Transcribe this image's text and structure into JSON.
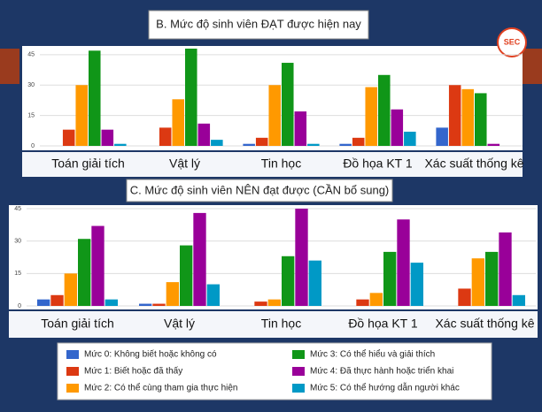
{
  "logo_text": "SEC",
  "chart_data": [
    {
      "type": "bar",
      "title": "B. Mức độ sinh viên ĐẠT được hiện nay",
      "categories": [
        "Toán giải tích",
        "Vật lý",
        "Tin học",
        "Đồ họa KT 1",
        "Xác suất thống kê"
      ],
      "ylim": [
        0,
        48
      ],
      "yticks": [
        0,
        15,
        30,
        45
      ],
      "grid": true,
      "legend": "bottom",
      "series": [
        {
          "name": "Mức 0: Không biết hoặc không có",
          "color": "#3366cc",
          "values": [
            0,
            0,
            1,
            1,
            9
          ]
        },
        {
          "name": "Mức 1: Biết hoặc đã thấy",
          "color": "#dc3912",
          "values": [
            8,
            9,
            4,
            4,
            30
          ]
        },
        {
          "name": "Mức 2: Có thể cùng tham gia thực hiện",
          "color": "#ff9900",
          "values": [
            30,
            23,
            30,
            29,
            28
          ]
        },
        {
          "name": "Mức 3: Có thể hiểu và giải thích",
          "color": "#109618",
          "values": [
            47,
            48,
            41,
            35,
            26
          ]
        },
        {
          "name": "Mức 4: Đã thực hành hoặc triển khai",
          "color": "#990099",
          "values": [
            8,
            11,
            17,
            18,
            1
          ]
        },
        {
          "name": "Mức 5: Có thể hướng dẫn người khác",
          "color": "#0099c6",
          "values": [
            1,
            3,
            1,
            7,
            0
          ]
        }
      ]
    },
    {
      "type": "bar",
      "title": "C. Mức độ sinh viên NÊN đạt được (CẦN bổ sung)",
      "categories": [
        "Toán giải tích",
        "Vật lý",
        "Tin học",
        "Đồ họa KT 1",
        "Xác suất thống kê"
      ],
      "ylim": [
        0,
        45
      ],
      "yticks": [
        0,
        15,
        30,
        45
      ],
      "grid": true,
      "series": [
        {
          "color": "#3366cc",
          "values": [
            3,
            1,
            0,
            0,
            0
          ]
        },
        {
          "color": "#dc3912",
          "values": [
            5,
            1,
            2,
            3,
            8
          ]
        },
        {
          "color": "#ff9900",
          "values": [
            15,
            11,
            3,
            6,
            22
          ]
        },
        {
          "color": "#109618",
          "values": [
            31,
            28,
            23,
            25,
            25
          ]
        },
        {
          "color": "#990099",
          "values": [
            37,
            43,
            45,
            40,
            34
          ]
        },
        {
          "color": "#0099c6",
          "values": [
            3,
            10,
            21,
            20,
            5
          ]
        }
      ]
    }
  ]
}
